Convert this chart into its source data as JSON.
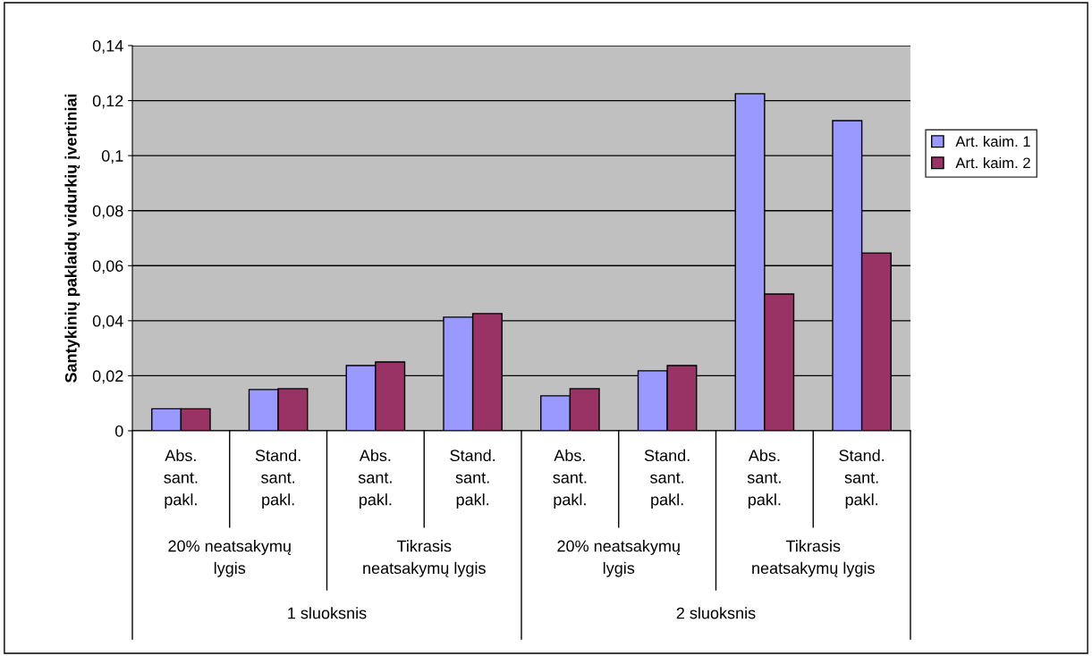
{
  "chart_data": {
    "type": "bar",
    "ylabel": "Santykinių paklaidų vidurkių įvertiniai",
    "categories": [
      "Abs.\nsant.\npakl.",
      "Stand.\nsant.\npakl.",
      "Abs.\nsant.\npakl.",
      "Stand.\nsant.\npakl.",
      "Abs.\nsant.\npakl.",
      "Stand.\nsant.\npakl.",
      "Abs.\nsant.\npakl.",
      "Stand.\nsant.\npakl."
    ],
    "series": [
      {
        "name": "Art. kaim. 1",
        "color": "#9999ff",
        "values": [
          0.008,
          0.015,
          0.0237,
          0.0413,
          0.0127,
          0.0218,
          0.1225,
          0.1127
        ]
      },
      {
        "name": "Art. kaim. 2",
        "color": "#993366",
        "values": [
          0.008,
          0.0153,
          0.025,
          0.0426,
          0.0153,
          0.0237,
          0.0497,
          0.0646
        ]
      }
    ],
    "annotations": [
      "20% neatsakymų\nlygis",
      "Tikrasis\nneatsakymų lygis",
      "20% neatsakymų\nlygis",
      "Tikrasis\nneatsakymų lygis",
      "1 sluoksnis",
      "2 sluoksnis"
    ],
    "ylim": [
      0,
      0.14
    ],
    "yticks": [
      0,
      {
        "value": 0.02,
        "label": "0,02"
      },
      {
        "value": 0.04,
        "label": "0,04"
      },
      {
        "value": 0.06,
        "label": "0,06"
      },
      {
        "value": 0.08,
        "label": "0,08"
      },
      {
        "value": 0.1,
        "label": "0,1"
      },
      {
        "value": 0.12,
        "label": "0,12"
      },
      {
        "value": 0.14,
        "label": "0,14"
      }
    ],
    "grid": "y",
    "legend": "right"
  }
}
